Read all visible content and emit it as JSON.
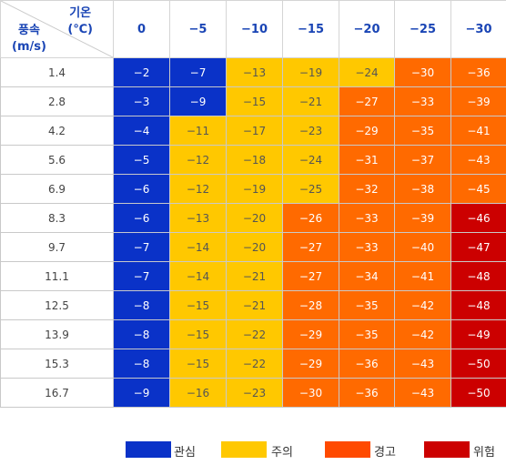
{
  "header": {
    "temperature_label": "기온",
    "temperature_unit": "(℃)",
    "wind_label": "풍속",
    "wind_unit": "(m/s)",
    "temperatures": [
      "0",
      "−5",
      "−10",
      "−15",
      "−20",
      "−25",
      "−30"
    ]
  },
  "rows": [
    {
      "speed": "1.4",
      "values": [
        "−2",
        "−7",
        "−13",
        "−19",
        "−24",
        "−30",
        "−36"
      ]
    },
    {
      "speed": "2.8",
      "values": [
        "−3",
        "−9",
        "−15",
        "−21",
        "−27",
        "−33",
        "−39"
      ]
    },
    {
      "speed": "4.2",
      "values": [
        "−4",
        "−11",
        "−17",
        "−23",
        "−29",
        "−35",
        "−41"
      ]
    },
    {
      "speed": "5.6",
      "values": [
        "−5",
        "−12",
        "−18",
        "−24",
        "−31",
        "−37",
        "−43"
      ]
    },
    {
      "speed": "6.9",
      "values": [
        "−6",
        "−12",
        "−19",
        "−25",
        "−32",
        "−38",
        "−45"
      ]
    },
    {
      "speed": "8.3",
      "values": [
        "−6",
        "−13",
        "−20",
        "−26",
        "−33",
        "−39",
        "−46"
      ]
    },
    {
      "speed": "9.7",
      "values": [
        "−7",
        "−14",
        "−20",
        "−27",
        "−33",
        "−40",
        "−47"
      ]
    },
    {
      "speed": "11.1",
      "values": [
        "−7",
        "−14",
        "−21",
        "−27",
        "−34",
        "−41",
        "−48"
      ]
    },
    {
      "speed": "12.5",
      "values": [
        "−8",
        "−15",
        "−21",
        "−28",
        "−35",
        "−42",
        "−48"
      ]
    },
    {
      "speed": "13.9",
      "values": [
        "−8",
        "−15",
        "−22",
        "−29",
        "−35",
        "−42",
        "−49"
      ]
    },
    {
      "speed": "15.3",
      "values": [
        "−8",
        "−15",
        "−22",
        "−29",
        "−36",
        "−43",
        "−50"
      ]
    },
    {
      "speed": "16.7",
      "values": [
        "−9",
        "−16",
        "−23",
        "−30",
        "−36",
        "−43",
        "−50"
      ]
    }
  ],
  "levels": [
    [
      0,
      0,
      1,
      1,
      1,
      2,
      2
    ],
    [
      0,
      0,
      1,
      1,
      2,
      2,
      2
    ],
    [
      0,
      1,
      1,
      1,
      2,
      2,
      2
    ],
    [
      0,
      1,
      1,
      1,
      2,
      2,
      2
    ],
    [
      0,
      1,
      1,
      1,
      2,
      2,
      2
    ],
    [
      0,
      1,
      1,
      2,
      2,
      2,
      3
    ],
    [
      0,
      1,
      1,
      2,
      2,
      2,
      3
    ],
    [
      0,
      1,
      1,
      2,
      2,
      2,
      3
    ],
    [
      0,
      1,
      1,
      2,
      2,
      2,
      3
    ],
    [
      0,
      1,
      1,
      2,
      2,
      2,
      3
    ],
    [
      0,
      1,
      1,
      2,
      2,
      2,
      3
    ],
    [
      0,
      1,
      1,
      2,
      2,
      2,
      3
    ]
  ],
  "legend": [
    {
      "label": "관심",
      "color": "#0a32c8"
    },
    {
      "label": "주의",
      "color": "#ffc800"
    },
    {
      "label": "경고",
      "color": "#ff4a00"
    },
    {
      "label": "위험",
      "color": "#cc0000"
    }
  ],
  "chart_data": {
    "type": "table",
    "x_header": "기온 (℃)",
    "y_header": "풍속 (m/s)",
    "columns": [
      0,
      -5,
      -10,
      -15,
      -20,
      -25,
      -30
    ],
    "rows": [
      1.4,
      2.8,
      4.2,
      5.6,
      6.9,
      8.3,
      9.7,
      11.1,
      12.5,
      13.9,
      15.3,
      16.7
    ],
    "values": [
      [
        -2,
        -7,
        -13,
        -19,
        -24,
        -30,
        -36
      ],
      [
        -3,
        -9,
        -15,
        -21,
        -27,
        -33,
        -39
      ],
      [
        -4,
        -11,
        -17,
        -23,
        -29,
        -35,
        -41
      ],
      [
        -5,
        -12,
        -18,
        -24,
        -31,
        -37,
        -43
      ],
      [
        -6,
        -12,
        -19,
        -25,
        -32,
        -38,
        -45
      ],
      [
        -6,
        -13,
        -20,
        -26,
        -33,
        -39,
        -46
      ],
      [
        -7,
        -14,
        -20,
        -27,
        -33,
        -40,
        -47
      ],
      [
        -7,
        -14,
        -21,
        -27,
        -34,
        -41,
        -48
      ],
      [
        -8,
        -15,
        -21,
        -28,
        -35,
        -42,
        -48
      ],
      [
        -8,
        -15,
        -22,
        -29,
        -35,
        -42,
        -49
      ],
      [
        -8,
        -15,
        -22,
        -29,
        -36,
        -43,
        -50
      ],
      [
        -9,
        -16,
        -23,
        -30,
        -36,
        -43,
        -50
      ]
    ],
    "legend": [
      "관심",
      "주의",
      "경고",
      "위험"
    ]
  }
}
